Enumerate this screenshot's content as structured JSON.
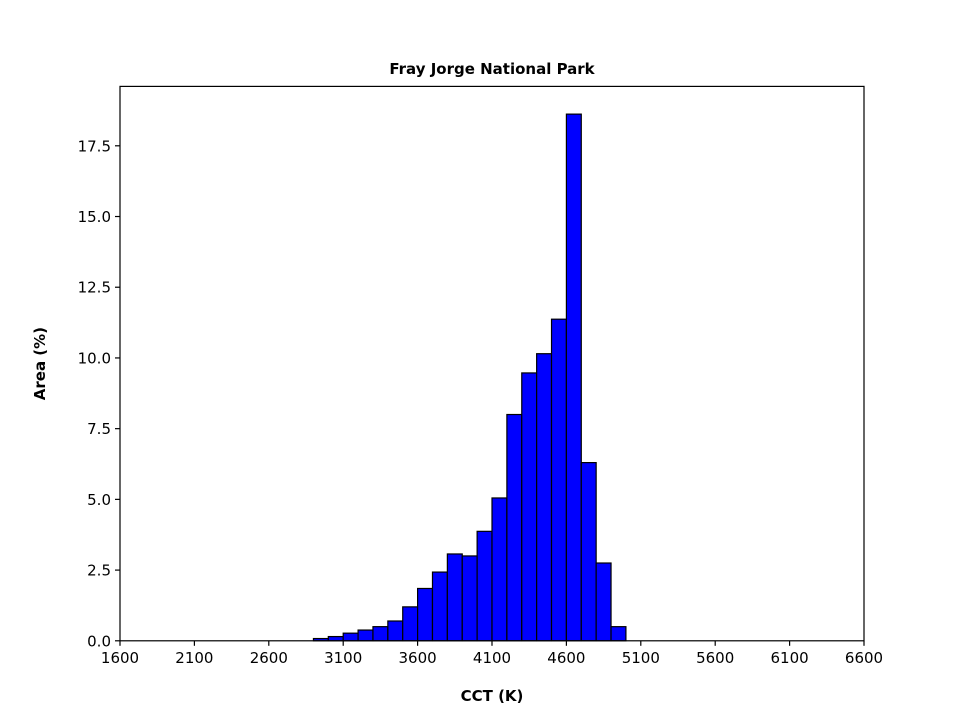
{
  "chart_data": {
    "type": "bar",
    "title": "Fray Jorge National Park",
    "xlabel": "CCT (K)",
    "ylabel": "Area (%)",
    "xlim": [
      1600,
      6600
    ],
    "ylim": [
      0,
      19.6
    ],
    "x_ticks": [
      "1600",
      "2100",
      "2600",
      "3100",
      "3600",
      "4100",
      "4600",
      "5100",
      "5600",
      "6100",
      "6600"
    ],
    "y_ticks": [
      "0.0",
      "2.5",
      "5.0",
      "7.5",
      "10.0",
      "12.5",
      "15.0",
      "17.5"
    ],
    "bin_width": 100,
    "bins": [
      {
        "start": 2900,
        "value": 0.08
      },
      {
        "start": 3000,
        "value": 0.15
      },
      {
        "start": 3100,
        "value": 0.27
      },
      {
        "start": 3200,
        "value": 0.38
      },
      {
        "start": 3300,
        "value": 0.5
      },
      {
        "start": 3400,
        "value": 0.7
      },
      {
        "start": 3500,
        "value": 1.2
      },
      {
        "start": 3600,
        "value": 1.85
      },
      {
        "start": 3700,
        "value": 2.43
      },
      {
        "start": 3800,
        "value": 3.07
      },
      {
        "start": 3900,
        "value": 3.0
      },
      {
        "start": 4000,
        "value": 3.87
      },
      {
        "start": 4100,
        "value": 5.05
      },
      {
        "start": 4200,
        "value": 8.0
      },
      {
        "start": 4300,
        "value": 9.47
      },
      {
        "start": 4400,
        "value": 10.15
      },
      {
        "start": 4500,
        "value": 11.37
      },
      {
        "start": 4600,
        "value": 18.62
      },
      {
        "start": 4700,
        "value": 6.3
      },
      {
        "start": 4800,
        "value": 2.75
      },
      {
        "start": 4900,
        "value": 0.5
      }
    ],
    "bar_color": "#0000ff",
    "edge_color": "#000000",
    "grid": false
  }
}
